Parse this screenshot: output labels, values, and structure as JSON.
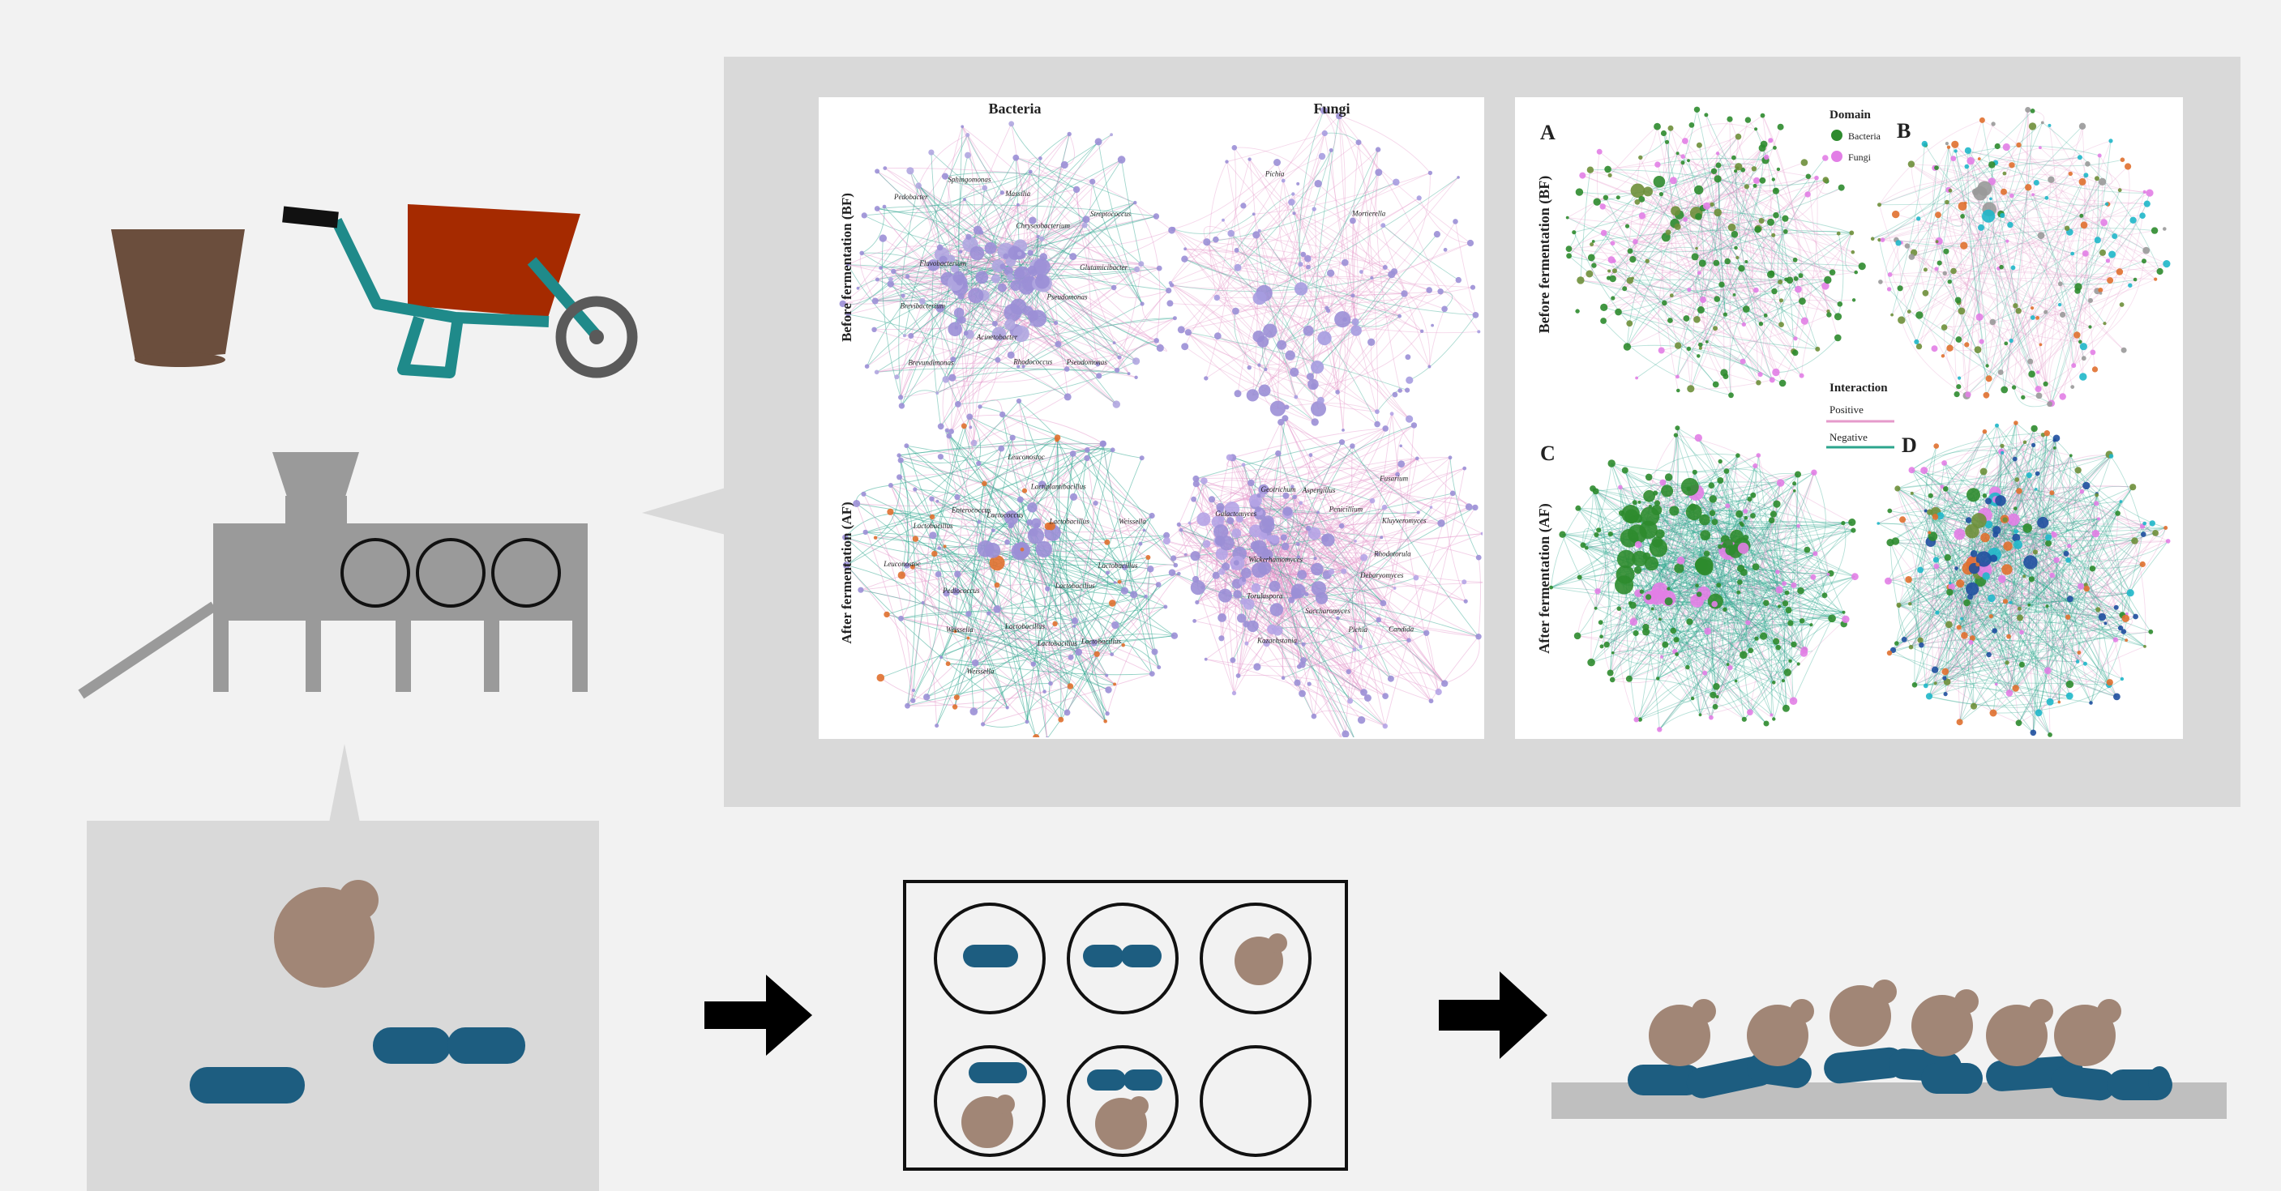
{
  "colors": {
    "background": "#f2f2f2",
    "panel": "#d9d9d9",
    "pot": "#6b4e3d",
    "barrow_tray": "#a52a00",
    "barrow_frame": "#1f8a8a",
    "machine": "#9a9a9a",
    "yeast": "#a18676",
    "bacteria_rod": "#1d5d80",
    "node_bf_bacteria": "#9b8fd6",
    "node_green": "#2e8b2e",
    "node_pink": "#e27ee6",
    "node_orange": "#e0702f",
    "node_cyan": "#1fb7c9",
    "edge_positive": "#e59acb",
    "edge_negative": "#2ca58d"
  },
  "icons": {
    "soil_pot": "flower-pot-icon",
    "wheelbarrow": "wheelbarrow-icon",
    "fermenter": "fermentation-machine-icon",
    "arrow": "arrow-right-icon",
    "plate": "six-well-plate-icon",
    "yeast": "yeast-cell-icon",
    "bacterium": "rod-bacterium-icon",
    "biofilm": "mixed-biofilm-icon"
  },
  "left_figure": {
    "col_bacteria": "Bacteria",
    "col_fungi": "Fungi",
    "row_bf": "Before fermentation (BF)",
    "row_af": "After fermentation (AF)",
    "genera_bf_bacteria": [
      "Pseudomonas",
      "Pseudomonas",
      "Rhodococcus",
      "Acinetobacter",
      "Brevundimonas",
      "Brevibacterium",
      "Flavobacterium",
      "Pedobacter",
      "Sphingomonas",
      "Massilia",
      "Chryseobacterium",
      "Streptococcus",
      "Glutamicibacter"
    ],
    "genera_bf_fungi": [
      "Mortierella",
      "Pichia"
    ],
    "genera_af_bacteria": [
      "Lactobacillus",
      "Lactobacillus",
      "Lactobacillus",
      "Lactobacillus",
      "Weissella",
      "Weissella",
      "Pediococcus",
      "Leuconostoc",
      "Lactobacillus",
      "Enterococcus",
      "Lactococcus",
      "Leuconostoc",
      "Lactiplantibacillus",
      "Lactobacillus",
      "Weissella",
      "Lactobacillus"
    ],
    "genera_af_fungi": [
      "Debaryomyces",
      "Candida",
      "Pichia",
      "Saccharomyces",
      "Kazachstania",
      "Torulaspora",
      "Wickerhamomyces",
      "Galactomyces",
      "Geotrichum",
      "Aspergillus",
      "Penicillium",
      "Fusarium",
      "Kluyveromyces",
      "Rhodotorula"
    ]
  },
  "right_figure": {
    "label_a": "A",
    "label_b": "B",
    "label_c": "C",
    "label_d": "D",
    "row_bf": "Before fermentation (BF)",
    "row_af": "After fermentation (AF)",
    "legend_domain_title": "Domain",
    "legend_bacteria": "Bacteria",
    "legend_fungi": "Fungi",
    "legend_interaction_title": "Interaction",
    "legend_positive": "Positive",
    "legend_negative": "Negative"
  }
}
